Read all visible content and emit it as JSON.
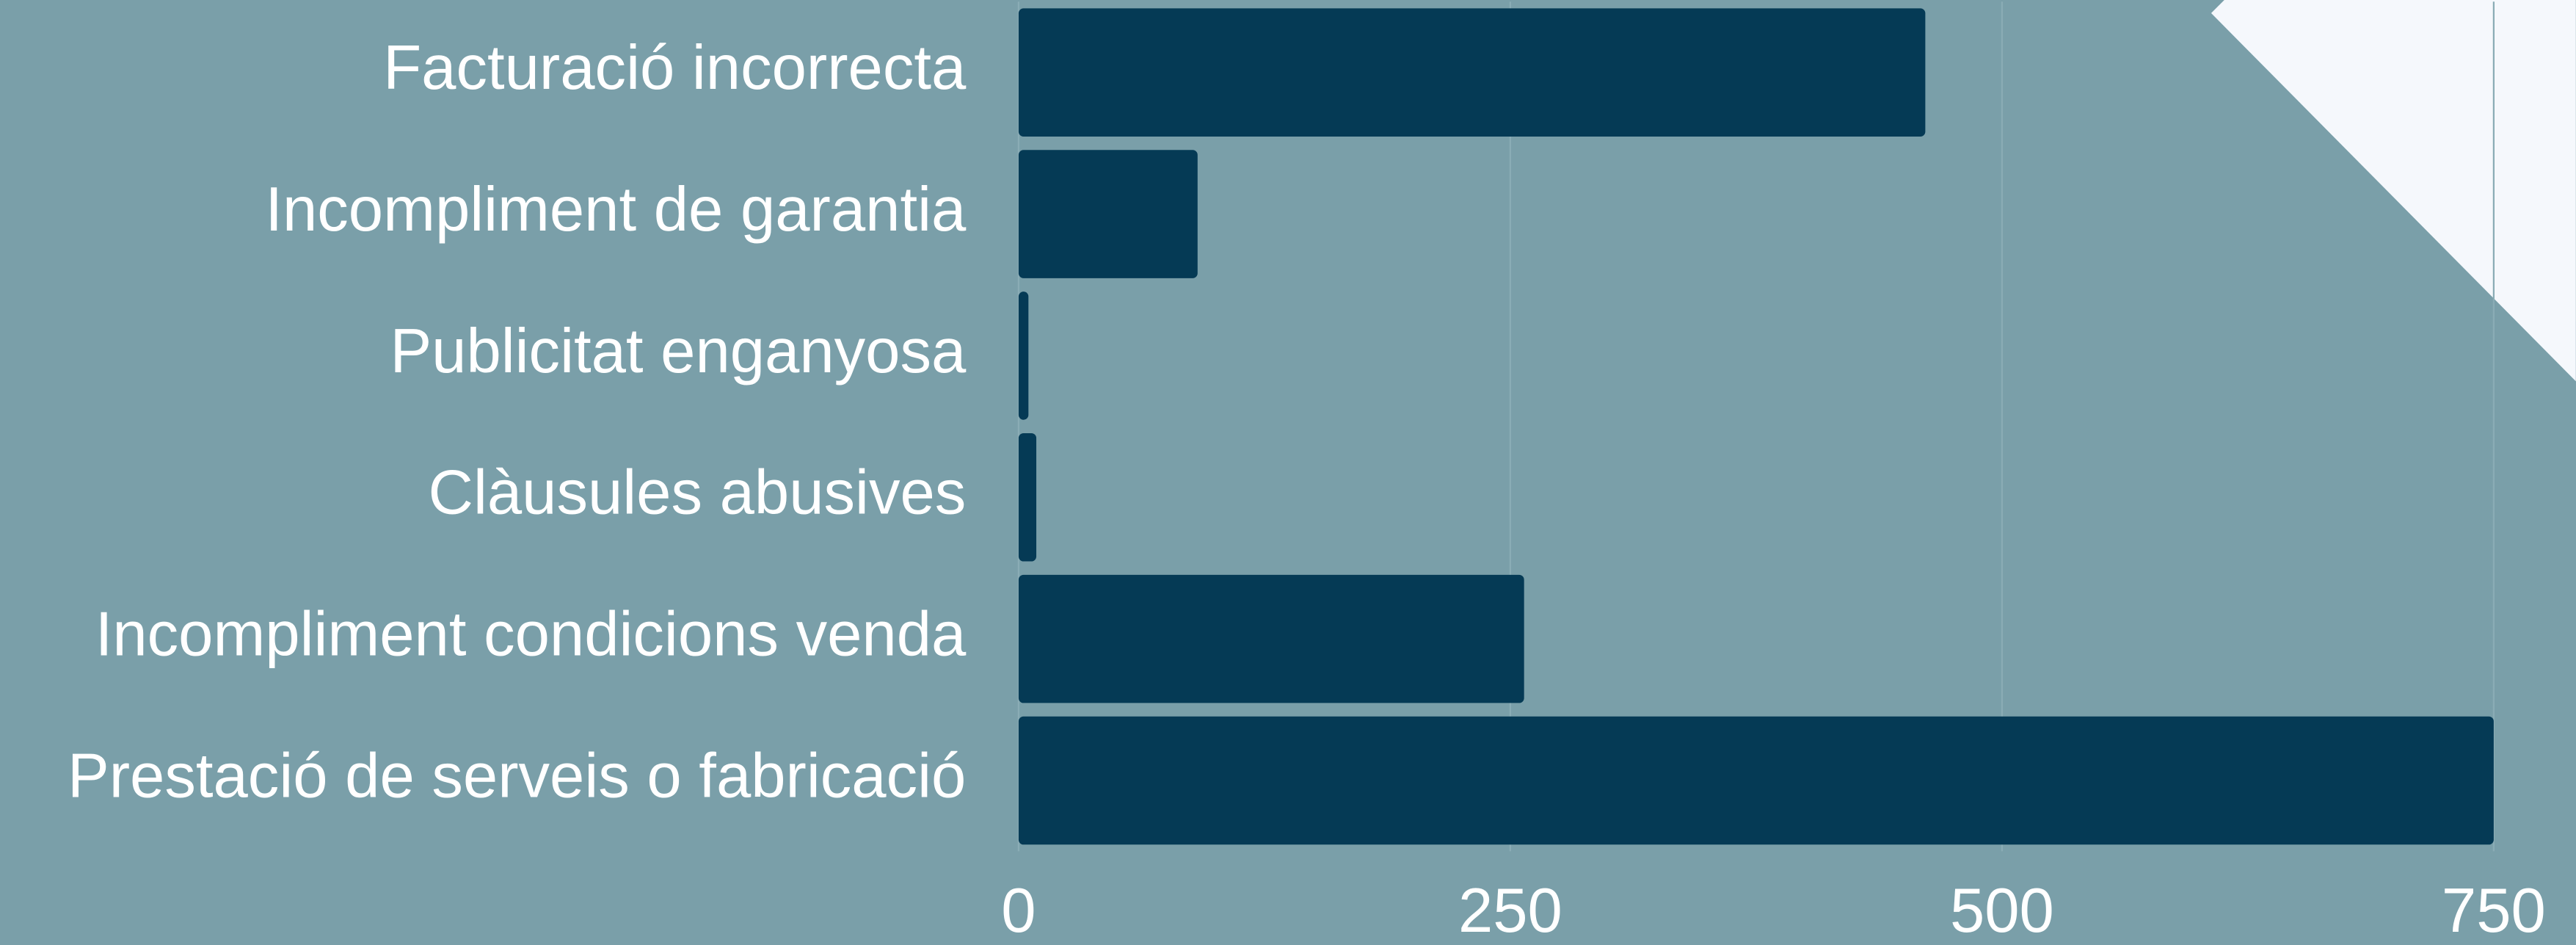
{
  "chart_data": {
    "type": "bar",
    "orientation": "horizontal",
    "categories": [
      "Facturació incorrecta",
      "Incompliment de garantia",
      "Publicitat enganyosa",
      "Clàusules abusives",
      "Incompliment condicions venda",
      "Prestació de serveis o fabricació"
    ],
    "values": [
      461,
      91,
      5,
      9,
      257,
      750
    ],
    "color": "#053a55",
    "xlim": [
      0,
      750
    ],
    "xticks": [
      0,
      250,
      500,
      750
    ],
    "grid": true
  }
}
